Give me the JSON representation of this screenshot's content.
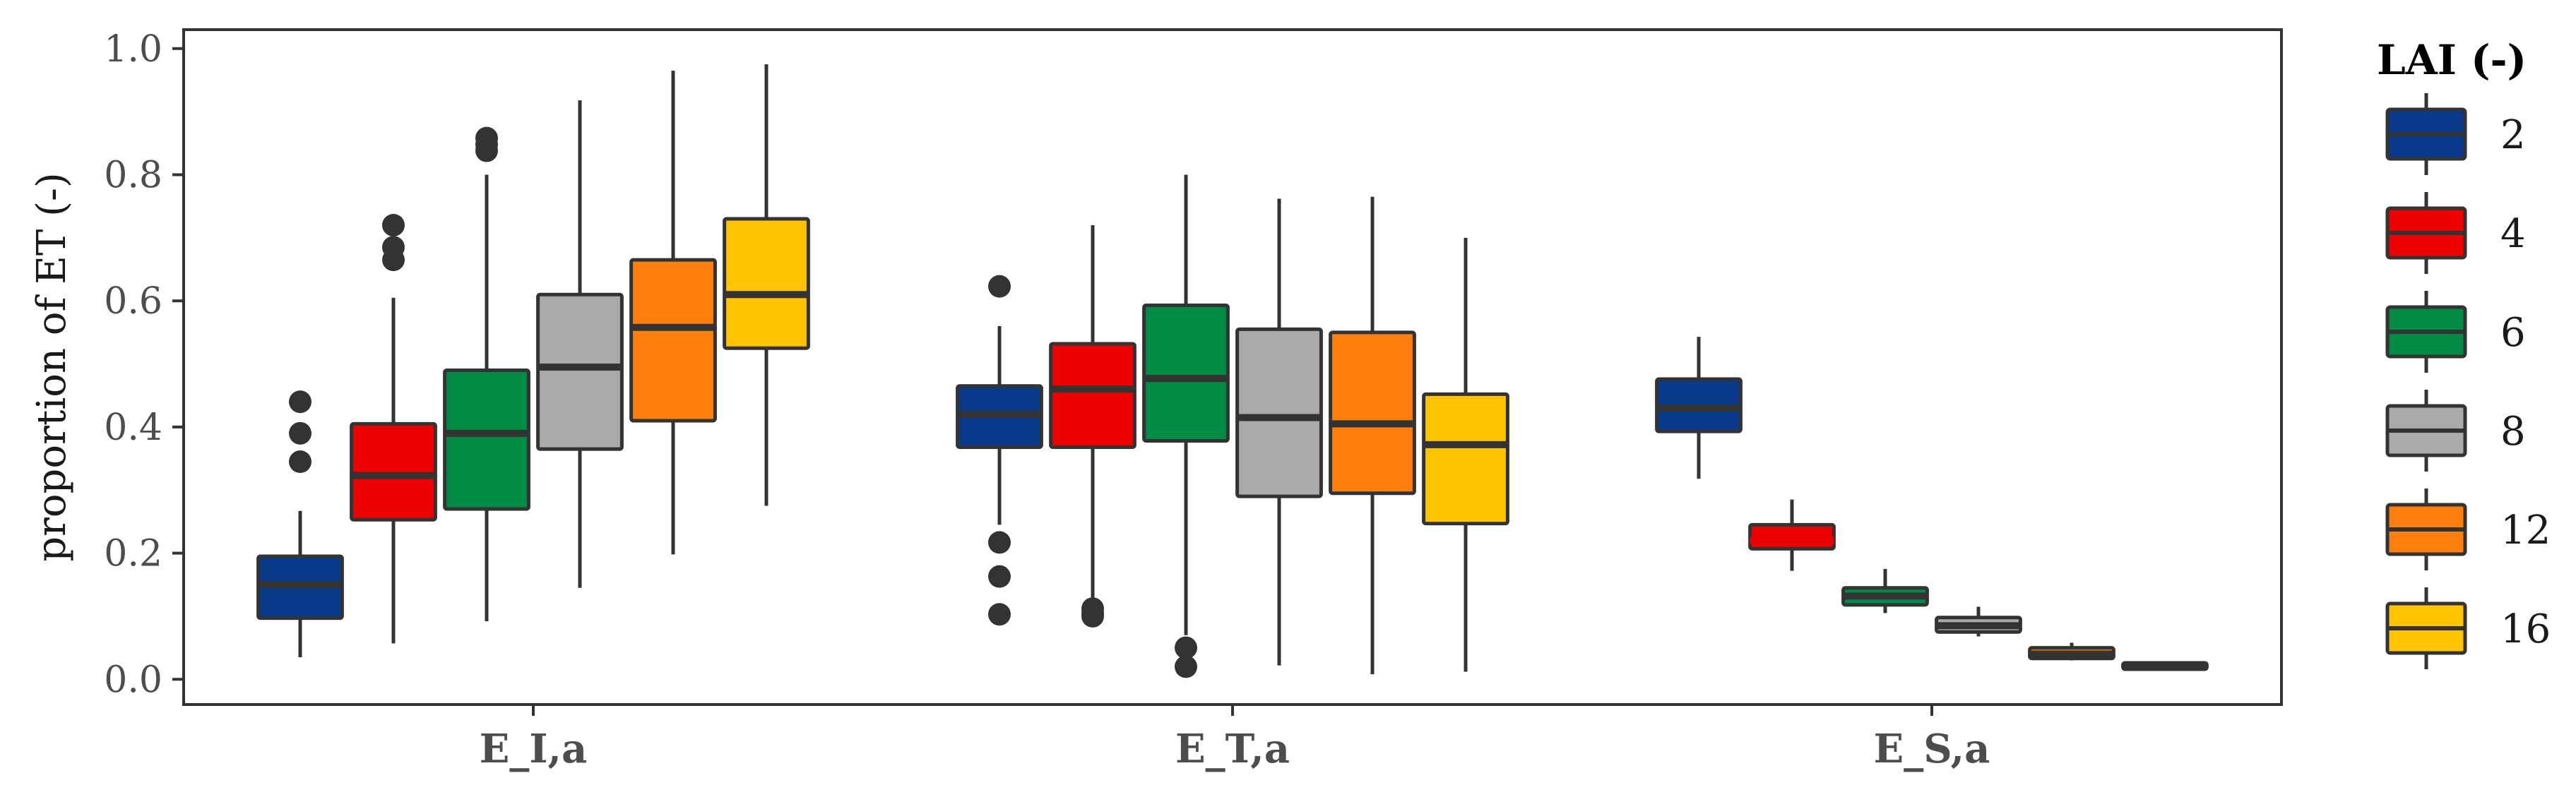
{
  "chart_data": {
    "type": "box",
    "title": "",
    "ylabel": "proportion of ET (-)",
    "xlabel": "",
    "ylim": [
      -0.04,
      1.03
    ],
    "yticks": [
      "0.0",
      "0.2",
      "0.4",
      "0.6",
      "0.8",
      "1.0"
    ],
    "categories": [
      "E_I,a",
      "E_T,a",
      "E_S,a"
    ],
    "legend": {
      "title": "LAI (-)",
      "position": "right",
      "entries": [
        {
          "label": "2",
          "color": "#0a3a8c"
        },
        {
          "label": "4",
          "color": "#ee0000"
        },
        {
          "label": "6",
          "color": "#008b45"
        },
        {
          "label": "8",
          "color": "#aaaaaa"
        },
        {
          "label": "12",
          "color": "#ff7f0e"
        },
        {
          "label": "16",
          "color": "#ffc300"
        }
      ]
    },
    "grid": false,
    "series": [
      {
        "name": "2",
        "color": "#0a3a8c",
        "boxes": [
          {
            "category": "E_I,a",
            "whisker_low": 0.035,
            "q1": 0.097,
            "median": 0.15,
            "q3": 0.195,
            "whisker_high": 0.267,
            "outliers": [
              0.345,
              0.39,
              0.44
            ]
          },
          {
            "category": "E_T,a",
            "whisker_low": 0.245,
            "q1": 0.368,
            "median": 0.42,
            "q3": 0.465,
            "whisker_high": 0.56,
            "outliers": [
              0.103,
              0.163,
              0.217,
              0.623
            ]
          },
          {
            "category": "E_S,a",
            "whisker_low": 0.318,
            "q1": 0.393,
            "median": 0.43,
            "q3": 0.476,
            "whisker_high": 0.543,
            "outliers": []
          }
        ]
      },
      {
        "name": "4",
        "color": "#ee0000",
        "boxes": [
          {
            "category": "E_I,a",
            "whisker_low": 0.057,
            "q1": 0.253,
            "median": 0.323,
            "q3": 0.405,
            "whisker_high": 0.605,
            "outliers": [
              0.665,
              0.685,
              0.72
            ]
          },
          {
            "category": "E_T,a",
            "whisker_low": 0.122,
            "q1": 0.368,
            "median": 0.46,
            "q3": 0.532,
            "whisker_high": 0.72,
            "outliers": [
              0.1,
              0.105,
              0.112
            ]
          },
          {
            "category": "E_S,a",
            "whisker_low": 0.172,
            "q1": 0.207,
            "median": 0.22,
            "q3": 0.245,
            "whisker_high": 0.285,
            "outliers": []
          }
        ]
      },
      {
        "name": "6",
        "color": "#008b45",
        "boxes": [
          {
            "category": "E_I,a",
            "whisker_low": 0.092,
            "q1": 0.27,
            "median": 0.39,
            "q3": 0.49,
            "whisker_high": 0.8,
            "outliers": [
              0.838,
              0.848,
              0.858
            ]
          },
          {
            "category": "E_T,a",
            "whisker_low": 0.07,
            "q1": 0.378,
            "median": 0.477,
            "q3": 0.593,
            "whisker_high": 0.8,
            "outliers": [
              0.02,
              0.05
            ]
          },
          {
            "category": "E_S,a",
            "whisker_low": 0.105,
            "q1": 0.118,
            "median": 0.132,
            "q3": 0.145,
            "whisker_high": 0.175,
            "outliers": []
          }
        ]
      },
      {
        "name": "8",
        "color": "#aaaaaa",
        "boxes": [
          {
            "category": "E_I,a",
            "whisker_low": 0.145,
            "q1": 0.365,
            "median": 0.495,
            "q3": 0.61,
            "whisker_high": 0.918,
            "outliers": []
          },
          {
            "category": "E_T,a",
            "whisker_low": 0.022,
            "q1": 0.29,
            "median": 0.415,
            "q3": 0.555,
            "whisker_high": 0.762,
            "outliers": []
          },
          {
            "category": "E_S,a",
            "whisker_low": 0.068,
            "q1": 0.075,
            "median": 0.085,
            "q3": 0.098,
            "whisker_high": 0.115,
            "outliers": []
          }
        ]
      },
      {
        "name": "12",
        "color": "#ff7f0e",
        "boxes": [
          {
            "category": "E_I,a",
            "whisker_low": 0.198,
            "q1": 0.41,
            "median": 0.558,
            "q3": 0.665,
            "whisker_high": 0.965,
            "outliers": []
          },
          {
            "category": "E_T,a",
            "whisker_low": 0.008,
            "q1": 0.295,
            "median": 0.405,
            "q3": 0.55,
            "whisker_high": 0.765,
            "outliers": []
          },
          {
            "category": "E_S,a",
            "whisker_low": 0.03,
            "q1": 0.033,
            "median": 0.04,
            "q3": 0.05,
            "whisker_high": 0.058,
            "outliers": []
          }
        ]
      },
      {
        "name": "16",
        "color": "#ffc300",
        "boxes": [
          {
            "category": "E_I,a",
            "whisker_low": 0.275,
            "q1": 0.525,
            "median": 0.61,
            "q3": 0.73,
            "whisker_high": 0.975,
            "outliers": []
          },
          {
            "category": "E_T,a",
            "whisker_low": 0.012,
            "q1": 0.247,
            "median": 0.372,
            "q3": 0.452,
            "whisker_high": 0.7,
            "outliers": []
          },
          {
            "category": "E_S,a",
            "whisker_low": 0.015,
            "q1": 0.016,
            "median": 0.02,
            "q3": 0.026,
            "whisker_high": 0.028,
            "outliers": []
          }
        ]
      }
    ]
  }
}
